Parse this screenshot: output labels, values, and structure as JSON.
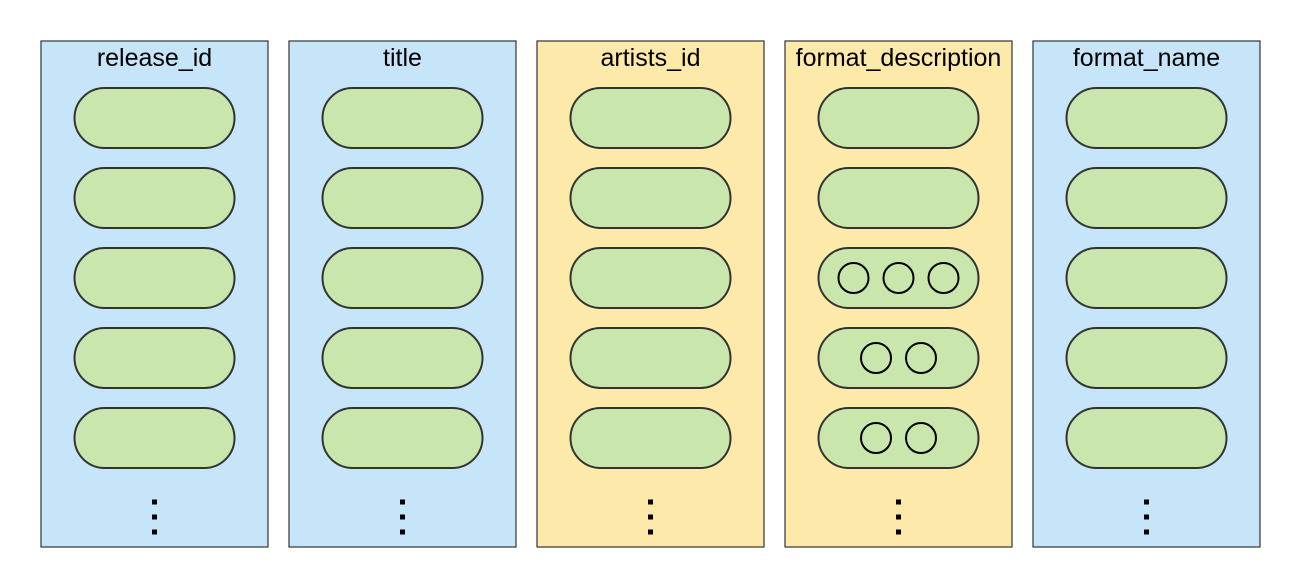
{
  "diagram": {
    "columns": [
      {
        "title": "release_id",
        "fill": "#c6e5f8",
        "cells": [
          {
            "circles": 0
          },
          {
            "circles": 0
          },
          {
            "circles": 0
          },
          {
            "circles": 0
          },
          {
            "circles": 0
          }
        ]
      },
      {
        "title": "title",
        "fill": "#c6e5f8",
        "cells": [
          {
            "circles": 0
          },
          {
            "circles": 0
          },
          {
            "circles": 0
          },
          {
            "circles": 0
          },
          {
            "circles": 0
          }
        ]
      },
      {
        "title": "artists_id",
        "fill": "#fde9a9",
        "cells": [
          {
            "circles": 0
          },
          {
            "circles": 0
          },
          {
            "circles": 0
          },
          {
            "circles": 0
          },
          {
            "circles": 0
          }
        ]
      },
      {
        "title": "format_description",
        "fill": "#fde9a9",
        "cells": [
          {
            "circles": 0
          },
          {
            "circles": 0
          },
          {
            "circles": 3
          },
          {
            "circles": 2
          },
          {
            "circles": 2
          }
        ]
      },
      {
        "title": "format_name",
        "fill": "#c6e5f8",
        "cells": [
          {
            "circles": 0
          },
          {
            "circles": 0
          },
          {
            "circles": 0
          },
          {
            "circles": 0
          },
          {
            "circles": 0
          }
        ]
      }
    ],
    "cell_fill": "#c9e6ad",
    "stroke": "#333333"
  }
}
